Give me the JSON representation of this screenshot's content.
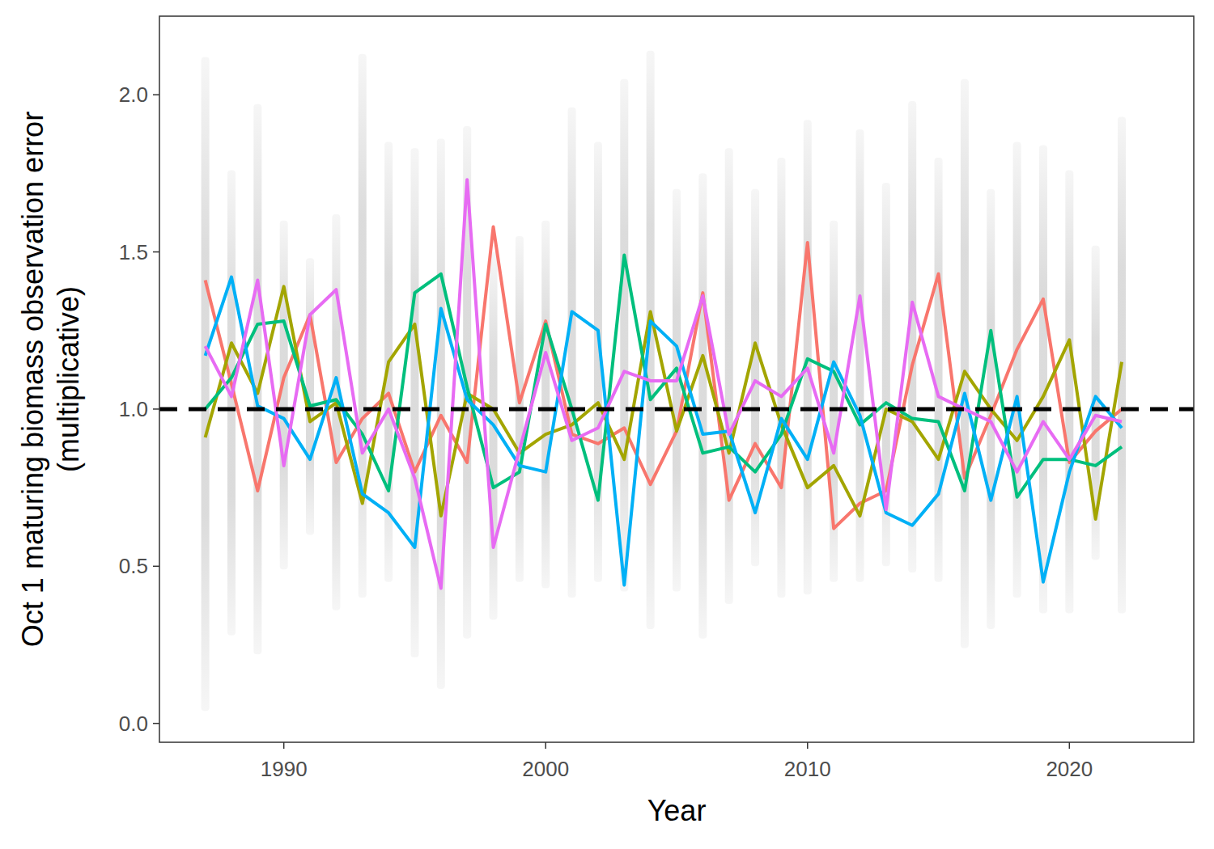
{
  "chart_data": {
    "type": "line",
    "x_label": "Year",
    "y_label": [
      "Oct 1 maturing biomass observation error",
      "(multiplicative)"
    ],
    "x": [
      1987,
      1988,
      1989,
      1990,
      1991,
      1992,
      1993,
      1994,
      1995,
      1996,
      1997,
      1998,
      1999,
      2000,
      2001,
      2002,
      2003,
      2004,
      2005,
      2006,
      2007,
      2008,
      2009,
      2010,
      2011,
      2012,
      2013,
      2014,
      2015,
      2016,
      2017,
      2018,
      2019,
      2020,
      2021,
      2022
    ],
    "series": [
      {
        "color": "#F8766D",
        "values": [
          1.41,
          1.08,
          0.74,
          1.1,
          1.3,
          0.83,
          0.97,
          1.05,
          0.8,
          0.98,
          0.83,
          1.58,
          1.02,
          1.28,
          0.92,
          0.89,
          0.94,
          0.76,
          0.93,
          1.37,
          0.71,
          0.89,
          0.75,
          1.53,
          0.62,
          0.7,
          0.74,
          1.14,
          1.43,
          0.78,
          0.98,
          1.19,
          1.35,
          0.83,
          0.93,
          1.0
        ]
      },
      {
        "color": "#A3A500",
        "values": [
          0.91,
          1.21,
          1.05,
          1.39,
          0.96,
          1.02,
          0.7,
          1.15,
          1.27,
          0.66,
          1.05,
          1.0,
          0.86,
          0.92,
          0.95,
          1.02,
          0.84,
          1.31,
          0.93,
          1.17,
          0.86,
          1.21,
          0.95,
          0.75,
          0.82,
          0.66,
          1.0,
          0.96,
          0.84,
          1.12,
          1.0,
          0.9,
          1.04,
          1.22,
          0.65,
          1.15
        ]
      },
      {
        "color": "#00BF7D",
        "values": [
          1.0,
          1.1,
          1.27,
          1.28,
          1.01,
          1.03,
          0.92,
          0.74,
          1.37,
          1.43,
          1.07,
          0.75,
          0.8,
          1.27,
          1.0,
          0.71,
          1.49,
          1.03,
          1.13,
          0.86,
          0.88,
          0.8,
          0.92,
          1.16,
          1.12,
          0.95,
          1.02,
          0.97,
          0.96,
          0.74,
          1.25,
          0.72,
          0.84,
          0.84,
          0.82,
          0.88
        ]
      },
      {
        "color": "#00B0F6",
        "values": [
          1.17,
          1.42,
          1.01,
          0.97,
          0.84,
          1.1,
          0.73,
          0.67,
          0.56,
          1.32,
          1.03,
          0.95,
          0.82,
          0.8,
          1.31,
          1.25,
          0.44,
          1.28,
          1.2,
          0.92,
          0.93,
          0.67,
          0.97,
          0.84,
          1.15,
          0.98,
          0.67,
          0.63,
          0.73,
          1.05,
          0.71,
          1.04,
          0.45,
          0.8,
          1.04,
          0.94
        ]
      },
      {
        "color": "#E76BF3",
        "values": [
          1.2,
          1.04,
          1.41,
          0.82,
          1.3,
          1.38,
          0.86,
          1.0,
          0.78,
          0.43,
          1.73,
          0.56,
          0.87,
          1.18,
          0.9,
          0.94,
          1.12,
          1.09,
          1.09,
          1.36,
          0.92,
          1.09,
          1.04,
          1.13,
          0.86,
          1.36,
          0.68,
          1.34,
          1.04,
          1.0,
          0.96,
          0.8,
          0.96,
          0.84,
          0.98,
          0.96
        ]
      }
    ],
    "spread": {
      "color": "#c4c4c4",
      "low": [
        0.04,
        0.28,
        0.22,
        0.49,
        0.6,
        0.36,
        0.4,
        0.45,
        0.21,
        0.11,
        0.27,
        0.33,
        0.45,
        0.43,
        0.4,
        0.45,
        0.42,
        0.3,
        0.42,
        0.27,
        0.38,
        0.5,
        0.4,
        0.41,
        0.45,
        0.45,
        0.5,
        0.48,
        0.45,
        0.24,
        0.3,
        0.4,
        0.35,
        0.35,
        0.52,
        0.35
      ],
      "high": [
        2.12,
        1.76,
        1.97,
        1.6,
        1.48,
        1.62,
        2.13,
        1.85,
        1.83,
        1.86,
        1.9,
        1.5,
        1.55,
        1.6,
        1.96,
        1.85,
        2.05,
        2.14,
        1.7,
        1.75,
        1.83,
        1.7,
        1.8,
        1.92,
        1.6,
        1.89,
        1.72,
        1.98,
        1.8,
        2.05,
        1.7,
        1.85,
        1.84,
        1.76,
        1.52,
        1.93
      ]
    },
    "reference_line": 1.0,
    "xlim": [
      1985.25,
      2024.75
    ],
    "xticks": [
      1990,
      2000,
      2010,
      2020
    ],
    "ylim": [
      -0.06,
      2.25
    ],
    "yticks": [
      {
        "value": 0,
        "label": "0.0"
      },
      {
        "value": 0.5,
        "label": "0.5"
      },
      {
        "value": 1,
        "label": "1.0"
      },
      {
        "value": 1.5,
        "label": "1.5"
      },
      {
        "value": 2,
        "label": "2.0"
      }
    ],
    "grid": false,
    "line_style": "solid"
  }
}
